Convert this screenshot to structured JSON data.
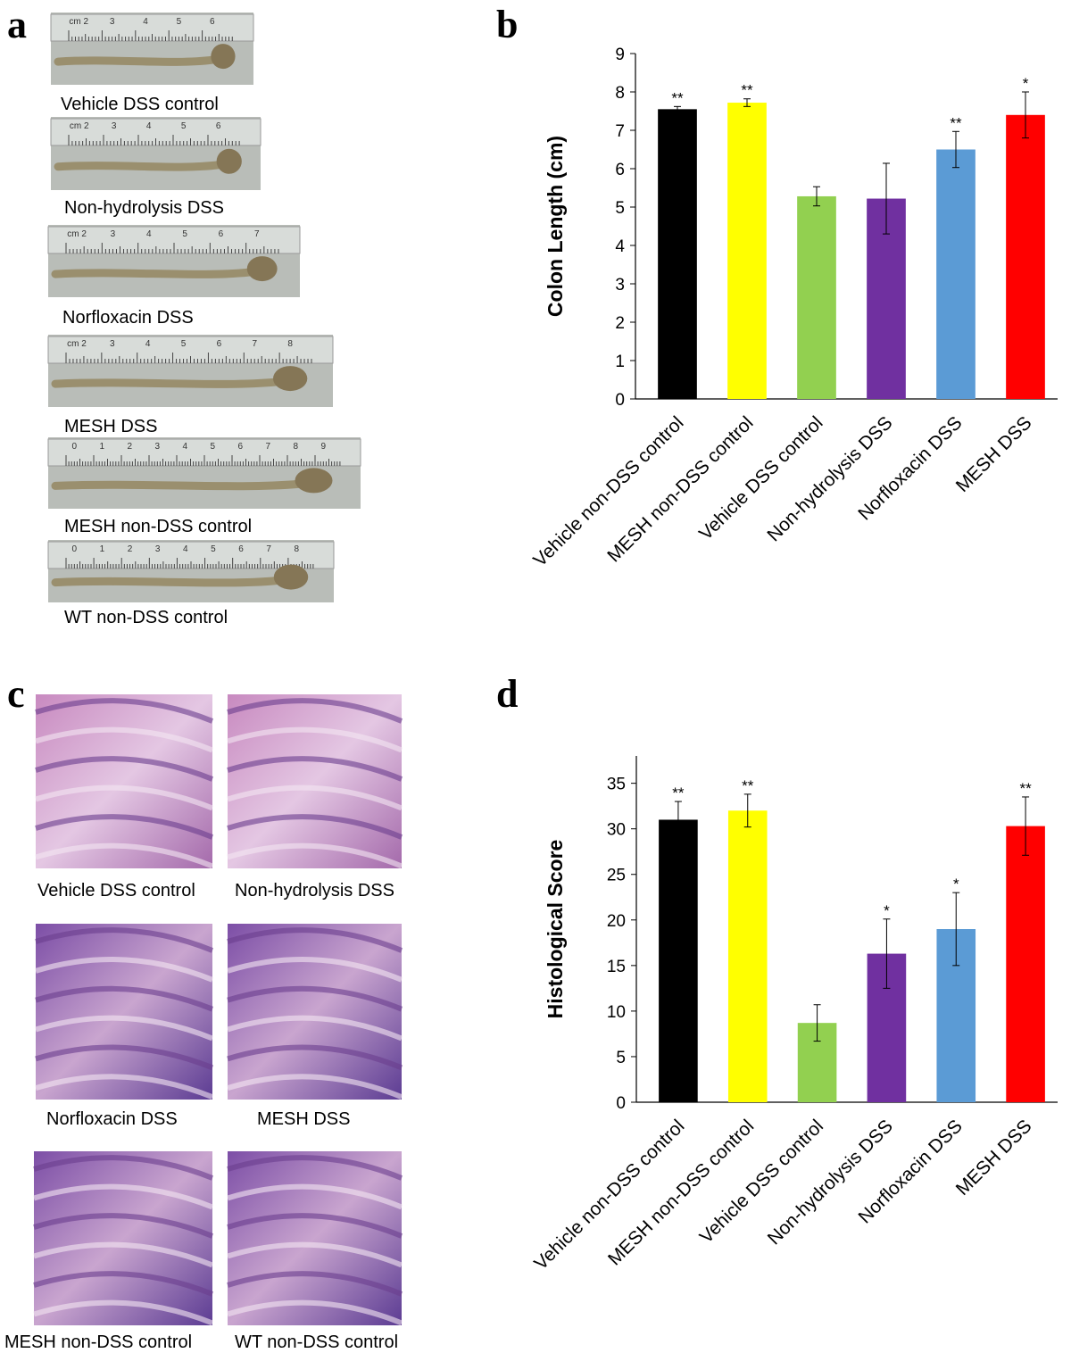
{
  "panel_labels": [
    "a",
    "b",
    "c",
    "d"
  ],
  "colon_photos": [
    {
      "caption": "Vehicle DSS control",
      "ruler": [
        "cm 2",
        "3",
        "4",
        "5",
        "6"
      ]
    },
    {
      "caption": "Non-hydrolysis DSS",
      "ruler": [
        "cm 2",
        "3",
        "4",
        "5",
        "6"
      ]
    },
    {
      "caption": "Norfloxacin DSS",
      "ruler": [
        "cm 2",
        "3",
        "4",
        "5",
        "6",
        "7"
      ]
    },
    {
      "caption": "MESH DSS",
      "ruler": [
        "cm 2",
        "3",
        "4",
        "5",
        "6",
        "7",
        "8"
      ]
    },
    {
      "caption": "MESH non-DSS control",
      "ruler": [
        "0",
        "1",
        "2",
        "3",
        "4",
        "5",
        "6",
        "7",
        "8",
        "9"
      ]
    },
    {
      "caption": "WT non-DSS control",
      "ruler": [
        "0",
        "1",
        "2",
        "3",
        "4",
        "5",
        "6",
        "7",
        "8"
      ]
    }
  ],
  "histology_images": [
    {
      "caption": "Vehicle DSS control"
    },
    {
      "caption": "Non-hydrolysis DSS"
    },
    {
      "caption": "Norfloxacin DSS"
    },
    {
      "caption": "MESH DSS"
    },
    {
      "caption": "MESH non-DSS control"
    },
    {
      "caption": "WT non-DSS control"
    }
  ],
  "chart_data": [
    {
      "type": "bar",
      "y_label": "Colon Length (cm)",
      "categories": [
        "Vehicle non-DSS control",
        "MESH non-DSS control",
        "Vehicle DSS control",
        "Non-hydrolysis DSS",
        "Norfloxacin DSS",
        "MESH DSS"
      ],
      "values": [
        7.55,
        7.72,
        5.28,
        5.22,
        6.5,
        7.4
      ],
      "errors": [
        0.07,
        0.1,
        0.25,
        0.92,
        0.47,
        0.6
      ],
      "significance": [
        "**",
        "**",
        null,
        null,
        "**",
        "*"
      ],
      "colors": [
        "#000000",
        "#ffff00",
        "#92d050",
        "#7030a0",
        "#5b9bd5",
        "#ff0000"
      ],
      "ylim": [
        0,
        9
      ],
      "yticks": [
        0,
        1,
        2,
        3,
        4,
        5,
        6,
        7,
        8,
        9
      ]
    },
    {
      "type": "bar",
      "y_label": "Histological Score",
      "categories": [
        "Vehicle non-DSS control",
        "MESH non-DSS control",
        "Vehicle DSS control",
        "Non-hydrolysis DSS",
        "Norfloxacin DSS",
        "MESH DSS"
      ],
      "values": [
        31,
        32,
        8.7,
        16.3,
        19,
        30.3
      ],
      "errors": [
        2,
        1.8,
        2,
        3.8,
        4,
        3.2
      ],
      "significance": [
        "**",
        "**",
        null,
        "*",
        "*",
        "**"
      ],
      "colors": [
        "#000000",
        "#ffff00",
        "#92d050",
        "#7030a0",
        "#5b9bd5",
        "#ff0000"
      ],
      "ylim": [
        0,
        38
      ],
      "yticks": [
        0,
        5,
        10,
        15,
        20,
        25,
        30,
        35
      ]
    }
  ]
}
